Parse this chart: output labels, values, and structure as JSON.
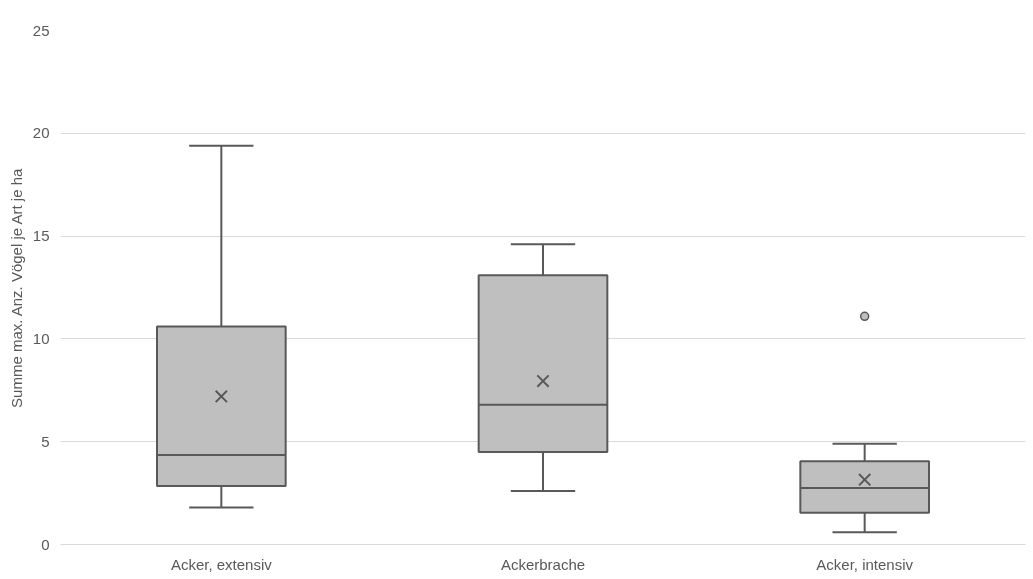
{
  "chart_data": {
    "type": "box",
    "ylabel": "Summe max. Anz. Vögel je Art je ha",
    "categories": [
      "Acker, extensiv",
      "Ackerbrache",
      "Acker, intensiv"
    ],
    "boxes": [
      {
        "low": 1.8,
        "q1": 2.85,
        "median": 4.35,
        "q3": 10.6,
        "high": 19.4,
        "mean": 7.2
      },
      {
        "low": 2.6,
        "q1": 4.5,
        "median": 6.8,
        "q3": 13.1,
        "high": 14.6,
        "mean": 7.95
      },
      {
        "low": 0.6,
        "q1": 1.55,
        "median": 2.75,
        "q3": 4.05,
        "high": 4.9,
        "mean": 3.15,
        "outliers": [
          11.1
        ]
      }
    ],
    "color": "#bfbfbf",
    "ylim": [
      0,
      25
    ],
    "yticks": [
      0,
      5,
      10,
      15,
      20,
      25
    ],
    "grid": "y"
  }
}
